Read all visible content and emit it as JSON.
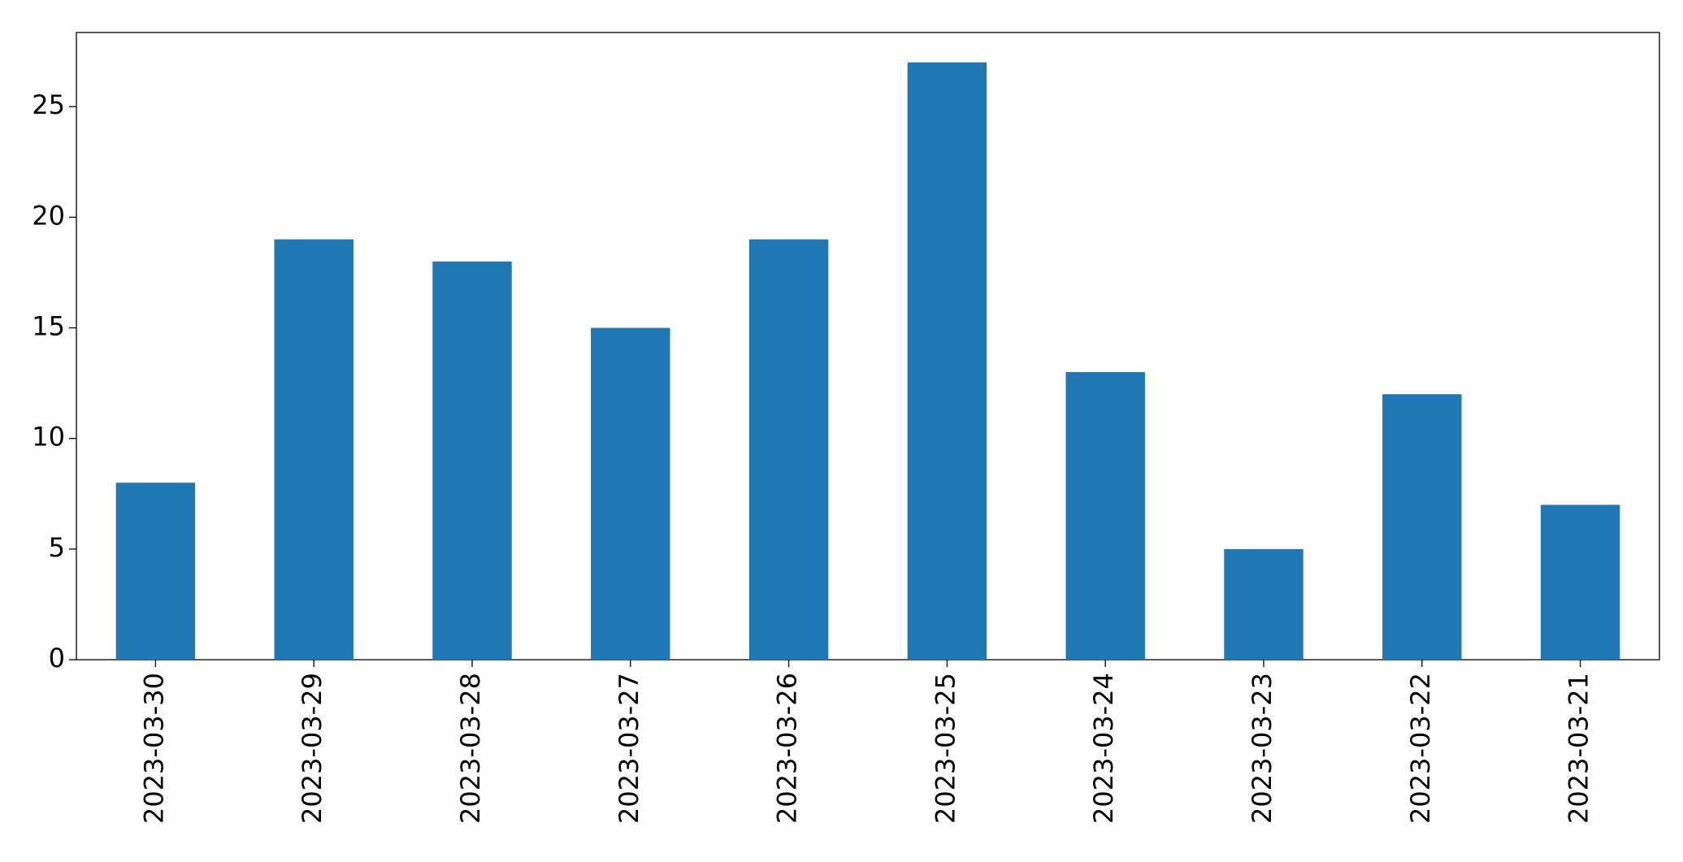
{
  "chart_data": {
    "type": "bar",
    "categories": [
      "2023-03-30",
      "2023-03-29",
      "2023-03-28",
      "2023-03-27",
      "2023-03-26",
      "2023-03-25",
      "2023-03-24",
      "2023-03-23",
      "2023-03-22",
      "2023-03-21"
    ],
    "values": [
      8,
      19,
      18,
      15,
      19,
      27,
      13,
      5,
      12,
      7
    ],
    "color": "#1f77b4",
    "ylim": [
      0,
      28.35
    ],
    "yticks": [
      0,
      5,
      10,
      15,
      20,
      25
    ],
    "grid": false
  }
}
